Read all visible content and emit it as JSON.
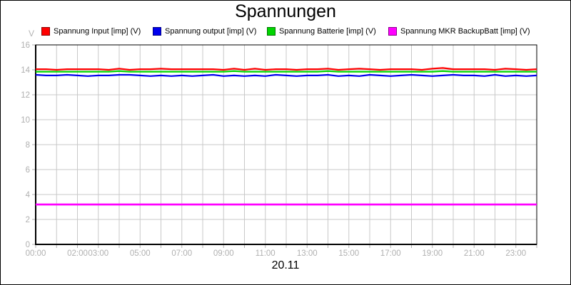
{
  "chart": {
    "title": "Spannungen",
    "ylabel": "V",
    "date_label": "20.11"
  },
  "chart_data": {
    "type": "line",
    "title": "Spannungen",
    "xlabel": "20.11",
    "ylabel": "V",
    "ylim": [
      0,
      16
    ],
    "xlim_hours": [
      0,
      24
    ],
    "y_ticks": [
      0,
      2,
      4,
      6,
      8,
      10,
      12,
      14,
      16
    ],
    "x_gridline_interval_hours": 1,
    "x_tick_label_hours": [
      0,
      2,
      3,
      5,
      7,
      9,
      11,
      13,
      15,
      17,
      19,
      21,
      23
    ],
    "x_tick_labels": [
      "00:00",
      "02:00",
      "03:00",
      "05:00",
      "07:00",
      "09:00",
      "11:00",
      "13:00",
      "15:00",
      "17:00",
      "19:00",
      "21:00",
      "23:00"
    ],
    "grid": true,
    "legend_position": "top",
    "colors": {
      "grid": "#c8c8c8",
      "tick_label": "#b0b0b0",
      "axis_border": "#000000"
    },
    "x_hours": [
      0,
      0.5,
      1,
      1.5,
      2,
      2.5,
      3,
      3.5,
      4,
      4.5,
      5,
      5.5,
      6,
      6.5,
      7,
      7.5,
      8,
      8.5,
      9,
      9.5,
      10,
      10.5,
      11,
      11.5,
      12,
      12.5,
      13,
      13.5,
      14,
      14.5,
      15,
      15.5,
      16,
      16.5,
      17,
      17.5,
      18,
      18.5,
      19,
      19.5,
      20,
      20.5,
      21,
      21.5,
      22,
      22.5,
      23,
      23.5,
      24
    ],
    "series": [
      {
        "name": "Spannung Input [imp] (V)",
        "color": "#ff0000",
        "values": [
          14.05,
          14.05,
          14.0,
          14.05,
          14.05,
          14.05,
          14.05,
          14.0,
          14.1,
          14.0,
          14.05,
          14.05,
          14.1,
          14.05,
          14.05,
          14.05,
          14.05,
          14.05,
          14.0,
          14.1,
          14.0,
          14.1,
          14.0,
          14.05,
          14.05,
          14.0,
          14.05,
          14.05,
          14.1,
          14.0,
          14.05,
          14.1,
          14.05,
          14.0,
          14.05,
          14.05,
          14.05,
          14.0,
          14.1,
          14.15,
          14.05,
          14.05,
          14.05,
          14.05,
          14.0,
          14.1,
          14.05,
          14.0,
          14.05
        ]
      },
      {
        "name": "Spannung output [imp] (V)",
        "color": "#0000ee",
        "values": [
          13.6,
          13.55,
          13.55,
          13.6,
          13.55,
          13.5,
          13.55,
          13.55,
          13.6,
          13.6,
          13.55,
          13.5,
          13.55,
          13.5,
          13.55,
          13.5,
          13.55,
          13.6,
          13.5,
          13.55,
          13.5,
          13.55,
          13.5,
          13.6,
          13.55,
          13.5,
          13.55,
          13.55,
          13.6,
          13.5,
          13.55,
          13.5,
          13.6,
          13.55,
          13.5,
          13.55,
          13.6,
          13.55,
          13.5,
          13.55,
          13.6,
          13.55,
          13.55,
          13.5,
          13.6,
          13.5,
          13.55,
          13.5,
          13.55
        ]
      },
      {
        "name": "Spannung Batterie [imp] (V)",
        "color": "#00d500",
        "values": [
          13.85,
          13.85,
          13.85,
          13.85,
          13.85,
          13.85,
          13.85,
          13.85,
          13.9,
          13.85,
          13.85,
          13.85,
          13.85,
          13.85,
          13.85,
          13.85,
          13.85,
          13.85,
          13.85,
          13.9,
          13.85,
          13.85,
          13.85,
          13.85,
          13.85,
          13.85,
          13.85,
          13.85,
          13.9,
          13.85,
          13.85,
          13.85,
          13.85,
          13.85,
          13.85,
          13.85,
          13.85,
          13.85,
          13.85,
          13.9,
          13.85,
          13.85,
          13.85,
          13.85,
          13.85,
          13.85,
          13.85,
          13.85,
          13.85
        ]
      },
      {
        "name": "Spannung MKR BackupBatt [imp] (V)",
        "color": "#ff00ff",
        "values": [
          3.2,
          3.2,
          3.2,
          3.2,
          3.2,
          3.2,
          3.2,
          3.2,
          3.2,
          3.2,
          3.2,
          3.2,
          3.2,
          3.2,
          3.2,
          3.2,
          3.2,
          3.2,
          3.2,
          3.2,
          3.2,
          3.2,
          3.2,
          3.2,
          3.2,
          3.2,
          3.2,
          3.2,
          3.2,
          3.2,
          3.2,
          3.2,
          3.2,
          3.2,
          3.2,
          3.2,
          3.2,
          3.2,
          3.2,
          3.2,
          3.2,
          3.2,
          3.2,
          3.2,
          3.2,
          3.2,
          3.2,
          3.2,
          3.2
        ]
      }
    ]
  }
}
